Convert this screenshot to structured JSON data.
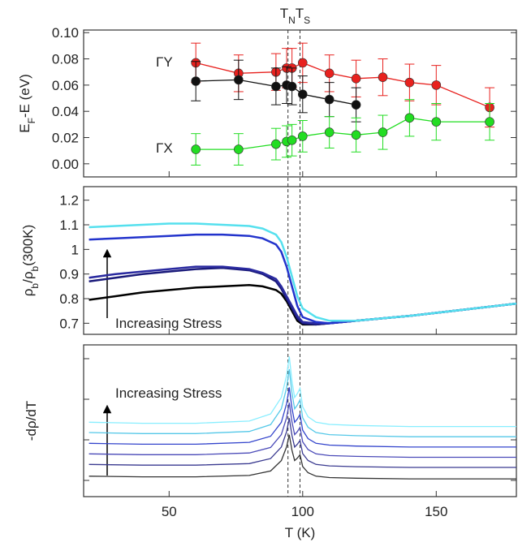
{
  "chart_data": [
    {
      "type": "scatter-line",
      "ylabel": [
        {
          "t": "E"
        },
        {
          "t": "F",
          "sub": true
        },
        {
          "t": "-E (eV)"
        }
      ],
      "top_labels": [
        {
          "t": "T"
        },
        {
          "t": "N",
          "sub": true
        },
        {
          "t": "T"
        },
        {
          "t": "S",
          "sub": true
        }
      ],
      "vlines": [
        94.5,
        99
      ],
      "xlim": [
        18,
        180
      ],
      "ylim": [
        -0.01,
        0.102
      ],
      "yticks": [
        {
          "value": 0,
          "label": "0.00"
        },
        {
          "value": 0.02,
          "label": "0.02"
        },
        {
          "value": 0.04,
          "label": "0.04"
        },
        {
          "value": 0.06,
          "label": "0.06"
        },
        {
          "value": 0.08,
          "label": "0.08"
        },
        {
          "value": 0.1,
          "label": "0.10"
        }
      ],
      "series": [
        {
          "name": "ΓY",
          "color": "#e8211e",
          "label_color": "#e8211e",
          "x": [
            60,
            76,
            90,
            94,
            96,
            100,
            110,
            120,
            130,
            140,
            150,
            170
          ],
          "values": [
            0.077,
            0.069,
            0.07,
            0.073,
            0.073,
            0.077,
            0.069,
            0.065,
            0.066,
            0.062,
            0.06,
            0.043
          ],
          "errors": [
            0.015,
            0.014,
            0.014,
            0.015,
            0.015,
            0.015,
            0.014,
            0.014,
            0.014,
            0.014,
            0.015,
            0.015
          ]
        },
        {
          "color": "#111111",
          "x": [
            60,
            76,
            90,
            94,
            96,
            100,
            110,
            120
          ],
          "values": [
            0.063,
            0.064,
            0.059,
            0.06,
            0.059,
            0.053,
            0.049,
            0.045
          ],
          "errors": [
            0.015,
            0.015,
            0.014,
            0.014,
            0.014,
            0.014,
            0.013,
            0.013
          ]
        },
        {
          "name": "ΓX",
          "color": "#22dd22",
          "x": [
            60,
            76,
            90,
            94,
            96,
            100,
            110,
            120,
            130,
            140,
            150,
            170
          ],
          "values": [
            0.011,
            0.011,
            0.015,
            0.017,
            0.018,
            0.021,
            0.024,
            0.022,
            0.024,
            0.035,
            0.032,
            0.032
          ],
          "errors": [
            0.012,
            0.012,
            0.012,
            0.012,
            0.012,
            0.012,
            0.012,
            0.013,
            0.013,
            0.014,
            0.014,
            0.014
          ]
        }
      ]
    },
    {
      "type": "line",
      "ylabel": [
        {
          "t": "ρ"
        },
        {
          "t": "b",
          "sub": true
        },
        {
          "t": "/ρ"
        },
        {
          "t": "b",
          "sub": true
        },
        {
          "t": "(300K)"
        }
      ],
      "annotation": "Increasing Stress",
      "xlim": [
        18,
        180
      ],
      "ylim": [
        0.655,
        1.255
      ],
      "yticks": [
        0.7,
        0.8,
        0.9,
        1.0,
        1.1,
        1.2
      ],
      "x": [
        20,
        30,
        40,
        50,
        60,
        70,
        80,
        85,
        90,
        92,
        94,
        96,
        98,
        100,
        105,
        110,
        120,
        140,
        160,
        180
      ],
      "series": [
        {
          "color": "#000000",
          "values": [
            0.795,
            0.81,
            0.825,
            0.835,
            0.845,
            0.85,
            0.855,
            0.85,
            0.835,
            0.82,
            0.79,
            0.75,
            0.71,
            0.695,
            0.695,
            0.7,
            0.71,
            0.73,
            0.755,
            0.78
          ]
        },
        {
          "color": "#1a1a7a",
          "values": [
            0.87,
            0.885,
            0.9,
            0.91,
            0.92,
            0.925,
            0.915,
            0.9,
            0.87,
            0.84,
            0.8,
            0.76,
            0.72,
            0.7,
            0.695,
            0.7,
            0.71,
            0.73,
            0.755,
            0.78
          ]
        },
        {
          "color": "#2a2aa0",
          "values": [
            0.885,
            0.9,
            0.91,
            0.92,
            0.93,
            0.93,
            0.92,
            0.905,
            0.88,
            0.85,
            0.81,
            0.77,
            0.73,
            0.705,
            0.7,
            0.7,
            0.71,
            0.73,
            0.755,
            0.78
          ]
        },
        {
          "color": "#2233cc",
          "values": [
            1.04,
            1.045,
            1.05,
            1.055,
            1.06,
            1.06,
            1.055,
            1.045,
            1.02,
            0.99,
            0.93,
            0.85,
            0.77,
            0.725,
            0.705,
            0.7,
            0.71,
            0.73,
            0.755,
            0.78
          ]
        },
        {
          "color": "#55e0ee",
          "values": [
            1.09,
            1.095,
            1.1,
            1.105,
            1.105,
            1.1,
            1.095,
            1.085,
            1.06,
            1.03,
            0.97,
            0.89,
            0.81,
            0.76,
            0.725,
            0.71,
            0.71,
            0.73,
            0.755,
            0.78
          ]
        }
      ]
    },
    {
      "type": "line",
      "ylabel": [
        {
          "t": "-dρ/dT"
        }
      ],
      "annotation": "Increasing Stress",
      "xlabel": "T (K)",
      "xlim": [
        18,
        180
      ],
      "ylim": [
        -0.4,
        3.34
      ],
      "xticks": [
        50,
        100,
        150
      ],
      "yticks": [
        0,
        1,
        2,
        3
      ],
      "x": [
        20,
        40,
        60,
        80,
        88,
        92,
        94,
        95,
        96,
        97,
        98,
        99,
        100,
        102,
        105,
        110,
        120,
        140,
        160,
        180
      ],
      "series": [
        {
          "color": "#333333",
          "values": [
            0.105,
            0.088,
            0.088,
            0.122,
            0.233,
            0.488,
            0.828,
            1.125,
            0.743,
            0.488,
            0.547,
            0.632,
            0.343,
            0.19,
            0.105,
            0.071,
            0.054,
            0.037,
            0.037,
            0.037
          ]
        },
        {
          "color": "#3a3a90",
          "values": [
            0.395,
            0.376,
            0.376,
            0.414,
            0.538,
            0.823,
            1.203,
            1.535,
            1.108,
            0.823,
            0.889,
            0.984,
            0.661,
            0.49,
            0.395,
            0.357,
            0.338,
            0.319,
            0.319,
            0.319
          ]
        },
        {
          "color": "#4a4ab8",
          "values": [
            0.655,
            0.634,
            0.634,
            0.676,
            0.813,
            1.128,
            1.548,
            1.915,
            1.443,
            1.128,
            1.201,
            1.306,
            0.949,
            0.76,
            0.655,
            0.613,
            0.592,
            0.571,
            0.571,
            0.571
          ]
        },
        {
          "color": "#3344cc",
          "values": [
            0.915,
            0.892,
            0.892,
            0.938,
            1.088,
            1.433,
            1.893,
            2.295,
            1.778,
            1.433,
            1.513,
            1.628,
            1.237,
            1.03,
            0.915,
            0.869,
            0.846,
            0.823,
            0.823,
            0.823
          ]
        },
        {
          "color": "#55c8e8",
          "values": [
            1.18,
            1.154,
            1.154,
            1.206,
            1.375,
            1.765,
            2.285,
            2.74,
            2.155,
            1.765,
            1.856,
            1.986,
            1.544,
            1.31,
            1.18,
            1.128,
            1.102,
            1.076,
            1.076,
            1.076
          ]
        },
        {
          "color": "#88eeff",
          "values": [
            1.435,
            1.408,
            1.408,
            1.462,
            1.638,
            2.043,
            2.583,
            3.055,
            2.448,
            2.043,
            2.137,
            2.272,
            1.813,
            1.57,
            1.435,
            1.381,
            1.354,
            1.327,
            1.327,
            1.327
          ]
        }
      ]
    }
  ]
}
